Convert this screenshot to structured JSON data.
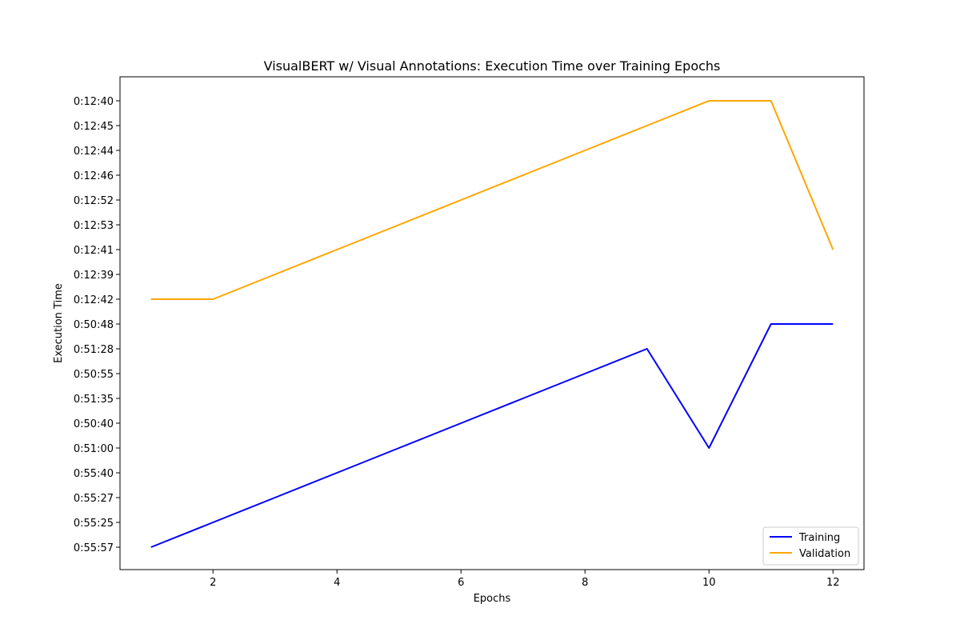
{
  "chart_data": {
    "type": "line",
    "title": "VisualBERT w/ Visual Annotations: Execution Time over Training Epochs",
    "xlabel": "Epochs",
    "ylabel": "Execution Time",
    "x_ticks": [
      2,
      4,
      6,
      8,
      10,
      12
    ],
    "xlim": [
      0.5,
      12.5
    ],
    "y_categories": [
      "0:55:57",
      "0:55:25",
      "0:55:27",
      "0:55:40",
      "0:51:00",
      "0:50:40",
      "0:51:35",
      "0:50:55",
      "0:51:28",
      "0:50:48",
      "0:12:42",
      "0:12:39",
      "0:12:41",
      "0:12:53",
      "0:12:52",
      "0:12:46",
      "0:12:44",
      "0:12:45",
      "0:12:40"
    ],
    "x": [
      1,
      2,
      3,
      4,
      5,
      6,
      7,
      8,
      9,
      10,
      11,
      12
    ],
    "series": [
      {
        "name": "Training",
        "color": "#0000ff",
        "values": [
          "0:55:57",
          "0:55:25",
          "0:55:27",
          "0:55:40",
          "0:51:00",
          "0:50:40",
          "0:51:35",
          "0:50:55",
          "0:51:28",
          "0:51:00",
          "0:50:48",
          "0:50:48"
        ]
      },
      {
        "name": "Validation",
        "color": "#ffa500",
        "values": [
          "0:12:42",
          "0:12:42",
          "0:12:39",
          "0:12:41",
          "0:12:53",
          "0:12:52",
          "0:12:46",
          "0:12:44",
          "0:12:45",
          "0:12:40",
          "0:12:40",
          "0:12:41"
        ]
      }
    ],
    "grid": false,
    "legend_position": "lower-right"
  }
}
